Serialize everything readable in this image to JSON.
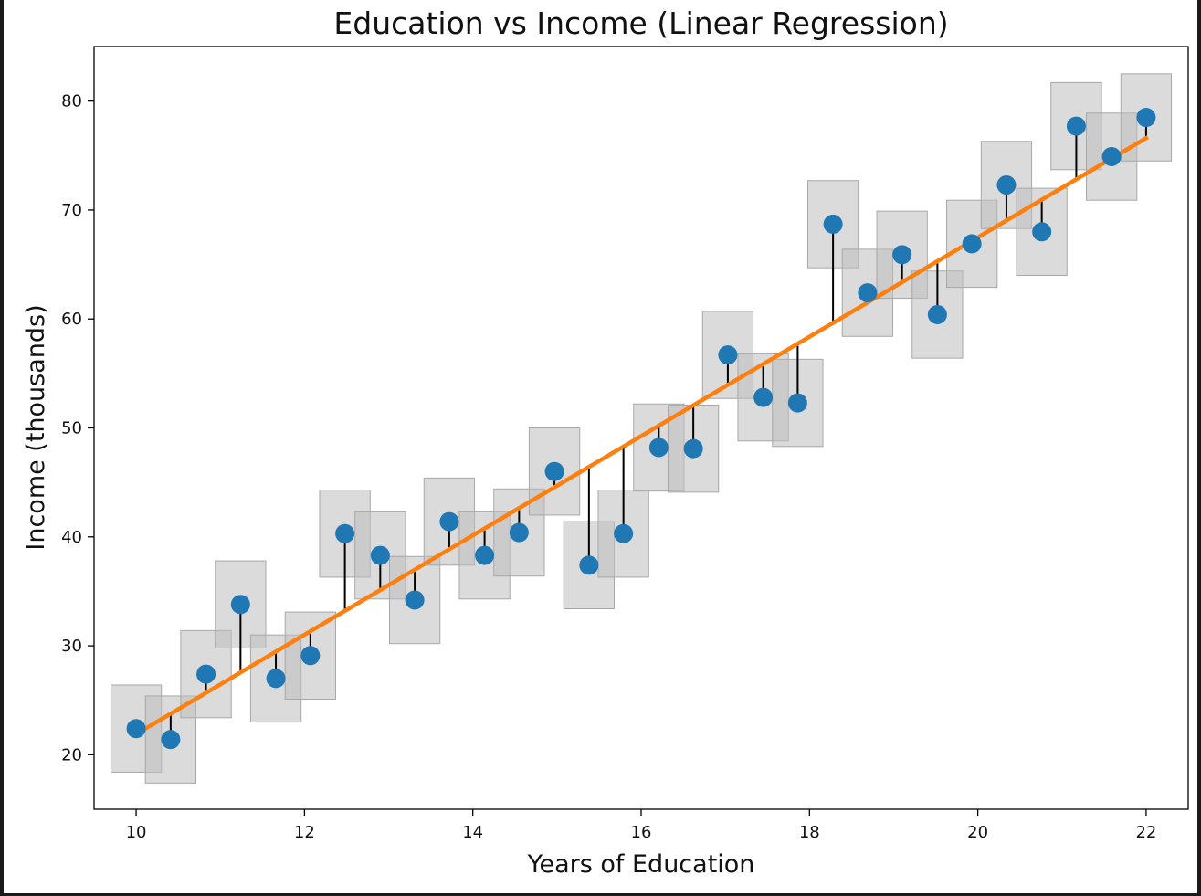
{
  "chart_data": {
    "type": "scatter",
    "title": "Education vs Income (Linear Regression)",
    "xlabel": "Years of Education",
    "ylabel": "Income (thousands)",
    "xlim": [
      9.5,
      22.5
    ],
    "ylim": [
      15,
      85
    ],
    "xticks": [
      10,
      12,
      14,
      16,
      18,
      20,
      22
    ],
    "yticks": [
      20,
      30,
      40,
      50,
      60,
      70,
      80
    ],
    "grid": false,
    "legend": "none",
    "regression_line": {
      "x": [
        10,
        22
      ],
      "y": [
        21.9,
        76.6
      ],
      "color": "#ff7f0e"
    },
    "uncertainty_box": {
      "half_width_years": 0.3,
      "half_height_thousands": 4,
      "color": "#bdbdbd"
    },
    "points": {
      "color": "#1f77b4",
      "x": [
        10.0,
        10.41,
        10.83,
        11.24,
        11.66,
        12.07,
        12.48,
        12.9,
        13.31,
        13.72,
        14.14,
        14.55,
        14.97,
        15.38,
        15.79,
        16.21,
        16.62,
        17.03,
        17.45,
        17.86,
        18.28,
        18.69,
        19.1,
        19.52,
        19.93,
        20.34,
        20.76,
        21.17,
        21.59,
        22.0
      ],
      "y": [
        22.4,
        21.4,
        27.4,
        33.8,
        27.0,
        29.1,
        40.3,
        38.3,
        34.2,
        41.4,
        38.3,
        40.4,
        46.0,
        37.4,
        40.3,
        48.2,
        48.1,
        56.7,
        52.8,
        52.3,
        68.7,
        62.4,
        65.9,
        60.4,
        66.9,
        72.3,
        68.0,
        77.7,
        74.9,
        78.5
      ]
    },
    "residual_color": "#000000"
  }
}
